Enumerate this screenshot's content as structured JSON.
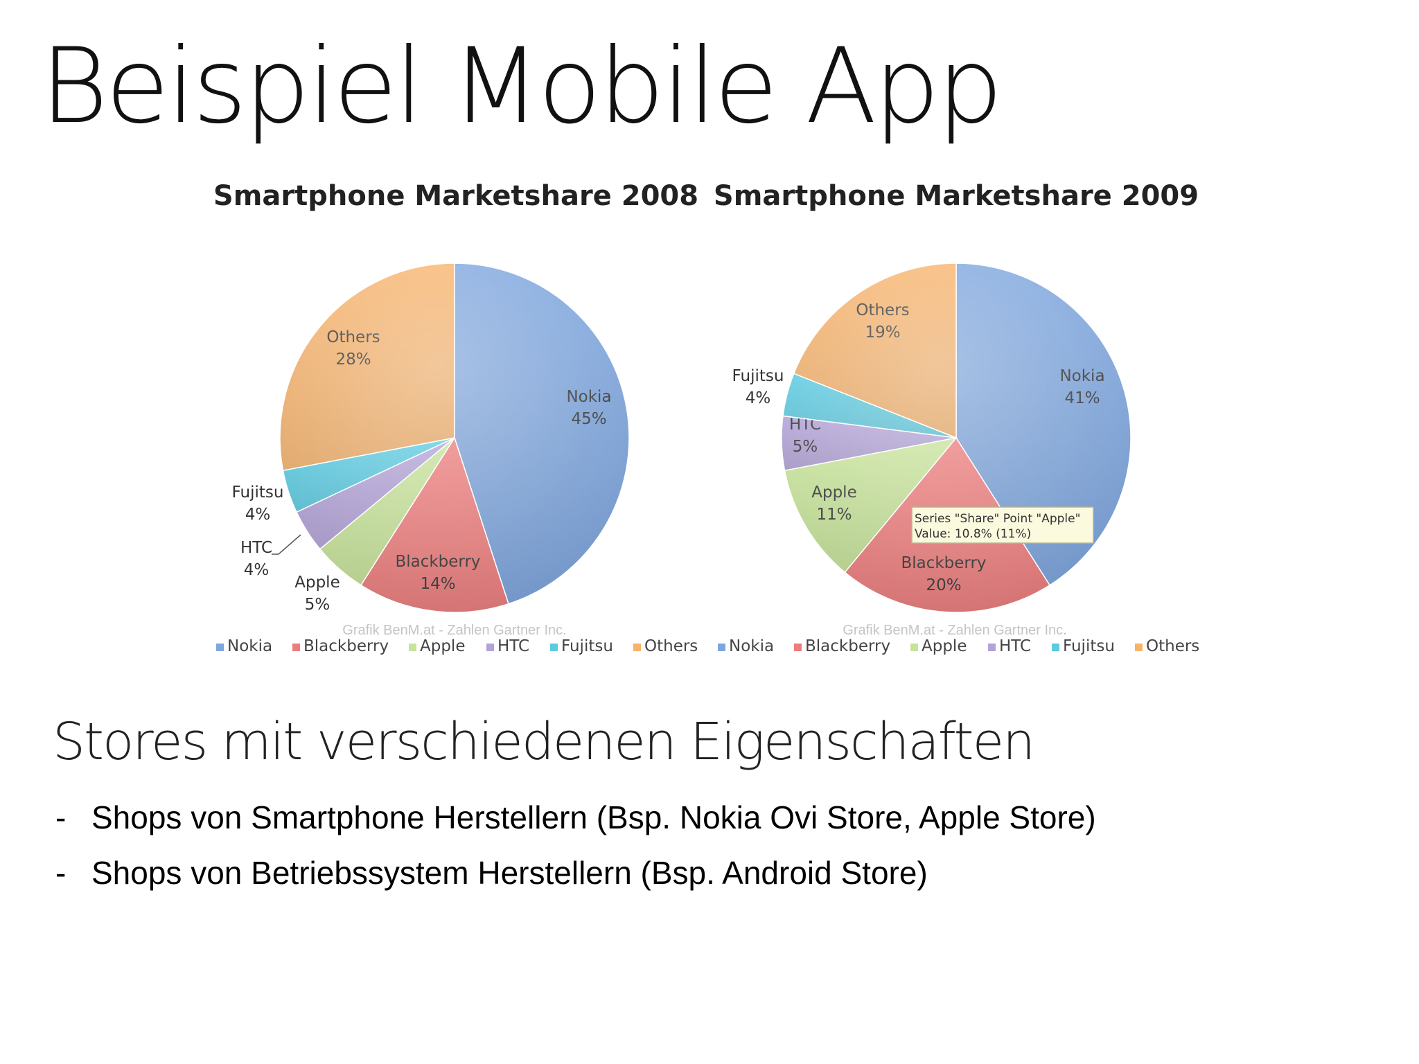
{
  "slide": {
    "title": "Beispiel Mobile App",
    "subheading": "Stores mit verschiedenen Eigenschaften",
    "bullet_marker": "-",
    "bullets": [
      "Shops von Smartphone Herstellern (Bsp. Nokia Ovi Store, Apple Store)",
      "Shops von Betriebssystem Herstellern (Bsp. Android Store)"
    ]
  },
  "colors": {
    "Nokia": "#7ea6de",
    "Blackberry": "#ec7d7d",
    "Apple": "#c7e39a",
    "HTC": "#b3a3d8",
    "Fujitsu": "#5ccbe2",
    "Others": "#f8b36b"
  },
  "chart_data": [
    {
      "type": "pie",
      "title": "Smartphone Marketshare 2008",
      "source": "Grafik BenM.at - Zahlen Gartner Inc.",
      "legend": "bottom",
      "categories": [
        "Nokia",
        "Blackberry",
        "Apple",
        "HTC",
        "Fujitsu",
        "Others"
      ],
      "values": [
        45,
        14,
        5,
        4,
        4,
        28
      ],
      "labels": [
        "45%",
        "14%",
        "5%",
        "4%",
        "4%",
        "28%"
      ]
    },
    {
      "type": "pie",
      "title": "Smartphone Marketshare 2009",
      "source": "Grafik BenM.at - Zahlen Gartner Inc.",
      "legend": "bottom",
      "categories": [
        "Nokia",
        "Blackberry",
        "Apple",
        "HTC",
        "Fujitsu",
        "Others"
      ],
      "values": [
        41,
        20,
        11,
        5,
        4,
        19
      ],
      "labels": [
        "41%",
        "20%",
        "11%",
        "5%",
        "4%",
        "19%"
      ],
      "tooltip": {
        "line1": "Series \"Share\" Point \"Apple\"",
        "line2": "Value: 10.8% (11%)"
      }
    }
  ]
}
